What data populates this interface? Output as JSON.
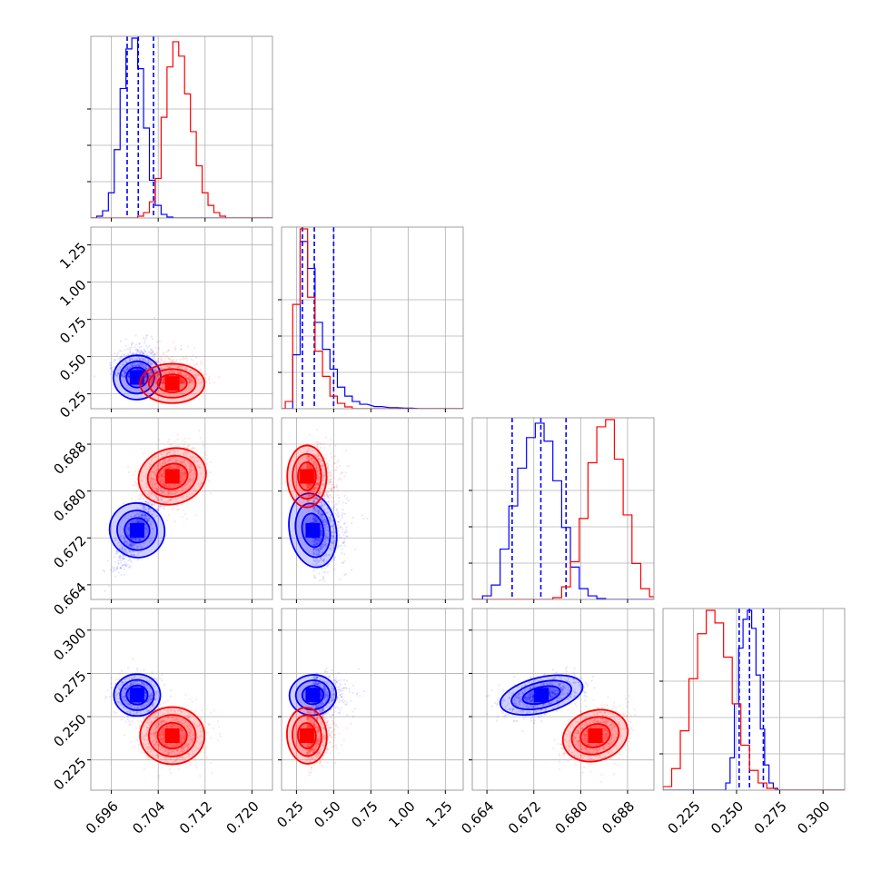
{
  "chart_data": {
    "type": "corner",
    "grid": true,
    "colors": {
      "series_a": "#0000ff",
      "series_b": "#ff0000"
    },
    "parameters": [
      {
        "range": [
          0.6925,
          0.7235
        ],
        "ticks": [
          "0.696",
          "0.704",
          "0.712",
          "0.720"
        ],
        "tick_values": [
          0.696,
          0.704,
          0.712,
          0.72
        ]
      },
      {
        "range": [
          0.15,
          1.37
        ],
        "ticks": [
          "0.25",
          "0.50",
          "0.75",
          "1.00",
          "1.25"
        ],
        "tick_values": [
          0.25,
          0.5,
          0.75,
          1.0,
          1.25
        ]
      },
      {
        "range": [
          0.6615,
          0.6925
        ],
        "ticks": [
          "0.664",
          "0.672",
          "0.680",
          "0.688"
        ],
        "tick_values": [
          0.664,
          0.672,
          0.68,
          0.688
        ]
      },
      {
        "range": [
          0.2075,
          0.3125
        ],
        "ticks": [
          "0.225",
          "0.250",
          "0.275",
          "0.300"
        ],
        "tick_values": [
          0.225,
          0.25,
          0.275,
          0.3
        ]
      }
    ],
    "series": [
      {
        "color": "#0000ff",
        "quantiles": [
          [
            0.6987,
            0.7006,
            0.7032
          ],
          [
            0.29,
            0.37,
            0.5
          ],
          [
            0.6683,
            0.6732,
            0.6775
          ],
          [
            0.2515,
            0.2575,
            0.2655
          ]
        ],
        "means": [
          0.7004,
          0.36,
          0.6733,
          0.2625
        ],
        "sds": [
          0.0018,
          0.07,
          0.003,
          0.0055
        ],
        "correlations": {
          "1-0": 0.1,
          "2-0": 0.8,
          "2-1": 0.1,
          "3-0": 0.0,
          "3-1": 0.1,
          "3-2": 0.45
        },
        "hist": [
          [
            0.693,
            0.0
          ],
          [
            0.694,
            0.01
          ],
          [
            0.695,
            0.04
          ],
          [
            0.696,
            0.14
          ],
          [
            0.697,
            0.38
          ],
          [
            0.698,
            0.72
          ],
          [
            0.699,
            0.94
          ],
          [
            0.7,
            1.0
          ],
          [
            0.701,
            0.83
          ],
          [
            0.702,
            0.5
          ],
          [
            0.703,
            0.21
          ],
          [
            0.704,
            0.07
          ],
          [
            0.705,
            0.02
          ],
          [
            0.706,
            0.005
          ],
          [
            0.707,
            0.0
          ]
        ],
        "hist_p1": [
          [
            0.25,
            0.3
          ],
          [
            0.3,
            0.93
          ],
          [
            0.35,
            0.78
          ],
          [
            0.4,
            0.48
          ],
          [
            0.45,
            0.33
          ],
          [
            0.5,
            0.22
          ],
          [
            0.55,
            0.12
          ],
          [
            0.6,
            0.07
          ],
          [
            0.65,
            0.04
          ],
          [
            0.7,
            0.025
          ],
          [
            0.8,
            0.012
          ],
          [
            0.9,
            0.006
          ],
          [
            1.0,
            0.003
          ],
          [
            1.1,
            0.0
          ]
        ],
        "hist_p2": [
          [
            0.664,
            0.02
          ],
          [
            0.6655,
            0.08
          ],
          [
            0.667,
            0.28
          ],
          [
            0.6685,
            0.52
          ],
          [
            0.67,
            0.73
          ],
          [
            0.6715,
            0.9
          ],
          [
            0.673,
            0.98
          ],
          [
            0.6745,
            0.88
          ],
          [
            0.676,
            0.66
          ],
          [
            0.6775,
            0.4
          ],
          [
            0.679,
            0.18
          ],
          [
            0.6805,
            0.06
          ],
          [
            0.682,
            0.02
          ],
          [
            0.6835,
            0.005
          ]
        ],
        "hist_p3": [
          [
            0.245,
            0.04
          ],
          [
            0.2475,
            0.18
          ],
          [
            0.25,
            0.48
          ],
          [
            0.2525,
            0.79
          ],
          [
            0.255,
            0.95
          ],
          [
            0.2575,
            1.0
          ],
          [
            0.26,
            0.9
          ],
          [
            0.2625,
            0.64
          ],
          [
            0.265,
            0.34
          ],
          [
            0.2675,
            0.14
          ],
          [
            0.27,
            0.04
          ],
          [
            0.2725,
            0.01
          ]
        ]
      },
      {
        "color": "#ff0000",
        "quantiles": [
          null,
          null,
          null,
          null
        ],
        "means": [
          0.7064,
          0.32,
          0.6825,
          0.239
        ],
        "sds": [
          0.0025,
          0.06,
          0.0024,
          0.0075
        ],
        "correlations": {
          "1-0": 0.0,
          "2-0": 0.3,
          "2-1": 0.0,
          "3-0": 0.0,
          "3-1": 0.05,
          "3-2": 0.35
        },
        "hist": [
          [
            0.7,
            0.0
          ],
          [
            0.701,
            0.01
          ],
          [
            0.702,
            0.03
          ],
          [
            0.703,
            0.09
          ],
          [
            0.704,
            0.22
          ],
          [
            0.705,
            0.56
          ],
          [
            0.706,
            0.84
          ],
          [
            0.707,
            0.98
          ],
          [
            0.708,
            0.9
          ],
          [
            0.709,
            0.69
          ],
          [
            0.71,
            0.48
          ],
          [
            0.711,
            0.29
          ],
          [
            0.712,
            0.14
          ],
          [
            0.713,
            0.07
          ],
          [
            0.714,
            0.03
          ],
          [
            0.715,
            0.01
          ],
          [
            0.716,
            0.0
          ]
        ],
        "hist_p1": [
          [
            0.2,
            0.04
          ],
          [
            0.25,
            0.58
          ],
          [
            0.3,
            1.0
          ],
          [
            0.35,
            0.62
          ],
          [
            0.4,
            0.32
          ],
          [
            0.45,
            0.18
          ],
          [
            0.5,
            0.07
          ],
          [
            0.55,
            0.03
          ],
          [
            0.6,
            0.01
          ],
          [
            0.65,
            0.0
          ]
        ],
        "hist_p2": [
          [
            0.676,
            0.01
          ],
          [
            0.6775,
            0.07
          ],
          [
            0.679,
            0.21
          ],
          [
            0.6805,
            0.45
          ],
          [
            0.682,
            0.76
          ],
          [
            0.6835,
            0.96
          ],
          [
            0.685,
            1.0
          ],
          [
            0.6865,
            0.78
          ],
          [
            0.688,
            0.47
          ],
          [
            0.6895,
            0.2
          ],
          [
            0.691,
            0.06
          ],
          [
            0.6925,
            0.015
          ]
        ],
        "hist_p3": [
          [
            0.21,
            0.02
          ],
          [
            0.215,
            0.12
          ],
          [
            0.22,
            0.33
          ],
          [
            0.225,
            0.62
          ],
          [
            0.23,
            0.87
          ],
          [
            0.235,
            1.0
          ],
          [
            0.24,
            0.93
          ],
          [
            0.245,
            0.74
          ],
          [
            0.25,
            0.48
          ],
          [
            0.255,
            0.25
          ],
          [
            0.26,
            0.11
          ],
          [
            0.265,
            0.04
          ],
          [
            0.27,
            0.01
          ]
        ]
      }
    ]
  }
}
